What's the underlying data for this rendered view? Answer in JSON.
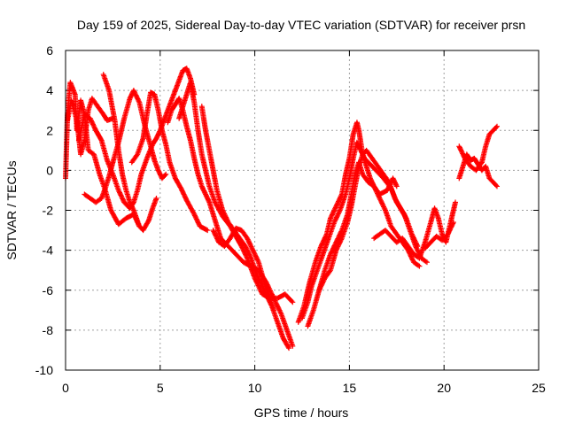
{
  "chart_data": {
    "type": "scatter",
    "title": "Day 159 of 2025, Sidereal Day-to-day VTEC variation (SDTVAR) for receiver prsn",
    "xlabel": "GPS time / hours",
    "ylabel": "SDTVAR / TECUs",
    "xlim": [
      0,
      25
    ],
    "ylim": [
      -10,
      6
    ],
    "xticks": [
      0,
      5,
      10,
      15,
      20,
      25
    ],
    "yticks": [
      -10,
      -8,
      -6,
      -4,
      -2,
      0,
      2,
      4,
      6
    ],
    "grid": true,
    "marker": "+",
    "color": "#ff0000",
    "series": [
      {
        "values": [
          [
            0.0,
            -0.4
          ],
          [
            0.1,
            2.8
          ],
          [
            0.25,
            4.4
          ],
          [
            0.5,
            3.8
          ],
          [
            0.6,
            2.0
          ],
          [
            0.8,
            3.5
          ],
          [
            1.0,
            2.8
          ],
          [
            1.2,
            1.0
          ],
          [
            1.5,
            0.8
          ],
          [
            1.8,
            -0.2
          ],
          [
            2.1,
            -1.0
          ],
          [
            2.4,
            -2.0
          ],
          [
            2.8,
            -2.7
          ],
          [
            3.2,
            -2.4
          ],
          [
            3.6,
            -2.2
          ],
          [
            3.9,
            -2.8
          ],
          [
            4.1,
            -3.0
          ],
          [
            4.4,
            -2.5
          ],
          [
            4.6,
            -1.9
          ],
          [
            4.8,
            -1.4
          ]
        ]
      },
      {
        "values": [
          [
            0.1,
            2.5
          ],
          [
            0.3,
            3.5
          ],
          [
            0.6,
            2.5
          ],
          [
            0.8,
            0.8
          ],
          [
            1.0,
            1.5
          ],
          [
            1.2,
            3.0
          ],
          [
            1.4,
            3.6
          ],
          [
            1.7,
            3.2
          ],
          [
            2.0,
            2.8
          ],
          [
            2.2,
            2.5
          ],
          [
            2.5,
            2.6
          ]
        ]
      },
      {
        "values": [
          [
            0.7,
            1.5
          ],
          [
            1.0,
            2.8
          ],
          [
            1.3,
            2.6
          ],
          [
            1.6,
            2.0
          ],
          [
            1.9,
            1.5
          ],
          [
            2.2,
            0.5
          ],
          [
            2.5,
            -0.2
          ],
          [
            2.8,
            -1.0
          ],
          [
            3.1,
            -1.6
          ],
          [
            3.4,
            -1.9
          ],
          [
            3.6,
            -1.6
          ],
          [
            3.8,
            -1.0
          ],
          [
            4.0,
            -0.2
          ],
          [
            4.3,
            0.6
          ],
          [
            4.6,
            1.3
          ],
          [
            4.8,
            1.6
          ],
          [
            5.0,
            2.0
          ],
          [
            5.2,
            2.5
          ],
          [
            5.4,
            3.0
          ],
          [
            5.6,
            3.5
          ],
          [
            5.8,
            4.0
          ],
          [
            6.0,
            4.5
          ],
          [
            6.2,
            5.0
          ],
          [
            6.4,
            5.1
          ],
          [
            6.6,
            4.6
          ],
          [
            6.8,
            3.8
          ]
        ]
      },
      {
        "values": [
          [
            1.0,
            -1.2
          ],
          [
            1.3,
            -1.4
          ],
          [
            1.6,
            -1.6
          ],
          [
            1.9,
            -1.4
          ],
          [
            2.1,
            -0.9
          ],
          [
            2.3,
            -0.3
          ],
          [
            2.5,
            0.4
          ],
          [
            2.8,
            1.4
          ],
          [
            3.1,
            2.6
          ],
          [
            3.4,
            3.6
          ],
          [
            3.6,
            4.0
          ],
          [
            3.9,
            3.4
          ],
          [
            4.2,
            2.2
          ],
          [
            4.5,
            1.2
          ],
          [
            4.7,
            0.5
          ],
          [
            4.9,
            0.0
          ],
          [
            5.1,
            -0.4
          ],
          [
            5.3,
            -0.2
          ]
        ]
      },
      {
        "values": [
          [
            2.0,
            4.8
          ],
          [
            2.3,
            4.0
          ],
          [
            2.6,
            2.5
          ],
          [
            2.8,
            1.0
          ],
          [
            3.0,
            -0.2
          ],
          [
            3.2,
            -1.0
          ],
          [
            3.4,
            -1.6
          ],
          [
            3.6,
            -2.0
          ],
          [
            3.9,
            -2.8
          ]
        ]
      },
      {
        "values": [
          [
            3.5,
            0.4
          ],
          [
            3.8,
            0.8
          ],
          [
            4.1,
            1.6
          ],
          [
            4.3,
            2.8
          ],
          [
            4.5,
            3.9
          ],
          [
            4.7,
            3.8
          ],
          [
            4.9,
            3.0
          ],
          [
            5.1,
            2.0
          ],
          [
            5.3,
            1.3
          ],
          [
            5.5,
            0.4
          ],
          [
            5.8,
            -0.4
          ],
          [
            6.1,
            -0.9
          ],
          [
            6.4,
            -1.5
          ],
          [
            6.8,
            -2.2
          ],
          [
            7.1,
            -2.8
          ],
          [
            7.5,
            -3.0
          ]
        ]
      },
      {
        "values": [
          [
            5.4,
            2.4
          ],
          [
            5.6,
            3.0
          ],
          [
            5.8,
            3.3
          ],
          [
            6.0,
            3.6
          ],
          [
            6.2,
            3.0
          ],
          [
            6.4,
            2.2
          ],
          [
            6.6,
            1.5
          ],
          [
            6.8,
            0.6
          ],
          [
            7.0,
            -0.2
          ],
          [
            7.2,
            -0.8
          ],
          [
            7.4,
            -1.2
          ],
          [
            7.6,
            -1.6
          ],
          [
            7.9,
            -2.5
          ],
          [
            8.2,
            -3.4
          ],
          [
            8.6,
            -3.8
          ],
          [
            9.0,
            -4.2
          ],
          [
            9.4,
            -4.6
          ],
          [
            9.8,
            -4.8
          ],
          [
            10.2,
            -5.0
          ],
          [
            10.6,
            -5.6
          ],
          [
            11.0,
            -6.4
          ],
          [
            11.4,
            -7.2
          ],
          [
            11.7,
            -8.0
          ],
          [
            12.0,
            -8.8
          ]
        ]
      },
      {
        "values": [
          [
            6.0,
            2.6
          ],
          [
            6.3,
            3.5
          ],
          [
            6.6,
            4.4
          ],
          [
            6.8,
            3.4
          ],
          [
            7.0,
            2.0
          ],
          [
            7.2,
            0.8
          ],
          [
            7.4,
            0.0
          ],
          [
            7.6,
            -0.8
          ],
          [
            7.9,
            -1.6
          ],
          [
            8.3,
            -2.3
          ],
          [
            8.7,
            -2.8
          ],
          [
            9.0,
            -3.3
          ],
          [
            9.3,
            -3.8
          ],
          [
            9.6,
            -4.4
          ],
          [
            10.0,
            -5.4
          ],
          [
            10.4,
            -6.2
          ],
          [
            10.8,
            -6.4
          ],
          [
            11.2,
            -6.4
          ],
          [
            11.6,
            -6.2
          ],
          [
            12.0,
            -6.6
          ]
        ]
      },
      {
        "values": [
          [
            7.2,
            3.2
          ],
          [
            7.4,
            2.0
          ],
          [
            7.6,
            1.0
          ],
          [
            7.8,
            0.0
          ],
          [
            8.0,
            -1.0
          ],
          [
            8.3,
            -2.0
          ],
          [
            8.6,
            -2.6
          ],
          [
            8.9,
            -3.0
          ],
          [
            9.2,
            -3.4
          ],
          [
            9.5,
            -3.8
          ],
          [
            9.8,
            -4.4
          ],
          [
            10.1,
            -5.2
          ],
          [
            10.5,
            -6.0
          ],
          [
            10.9,
            -6.8
          ],
          [
            11.2,
            -7.6
          ],
          [
            11.5,
            -8.4
          ],
          [
            11.8,
            -8.9
          ]
        ]
      },
      {
        "values": [
          [
            7.8,
            -3.0
          ],
          [
            8.1,
            -3.6
          ],
          [
            8.4,
            -3.8
          ],
          [
            8.7,
            -3.4
          ],
          [
            9.0,
            -2.9
          ],
          [
            9.3,
            -3.0
          ],
          [
            9.6,
            -3.4
          ],
          [
            9.9,
            -4.0
          ],
          [
            10.2,
            -4.6
          ],
          [
            10.5,
            -5.6
          ],
          [
            10.8,
            -6.4
          ],
          [
            11.0,
            -7.0
          ]
        ]
      },
      {
        "values": [
          [
            12.3,
            -7.6
          ],
          [
            12.6,
            -6.8
          ],
          [
            12.9,
            -5.6
          ],
          [
            13.2,
            -4.6
          ],
          [
            13.5,
            -3.8
          ],
          [
            13.8,
            -3.2
          ],
          [
            14.0,
            -2.4
          ],
          [
            14.3,
            -1.8
          ],
          [
            14.6,
            -1.2
          ],
          [
            14.8,
            -0.2
          ],
          [
            15.0,
            0.6
          ],
          [
            15.2,
            1.8
          ],
          [
            15.4,
            2.4
          ],
          [
            15.5,
            2.0
          ],
          [
            15.7,
            0.8
          ],
          [
            15.9,
            0.2
          ],
          [
            16.1,
            -0.4
          ],
          [
            16.3,
            -0.8
          ],
          [
            16.6,
            -1.2
          ],
          [
            17.0,
            -1.0
          ],
          [
            17.3,
            -0.4
          ],
          [
            17.5,
            -0.8
          ]
        ]
      },
      {
        "values": [
          [
            12.5,
            -7.4
          ],
          [
            12.8,
            -6.6
          ],
          [
            13.0,
            -5.8
          ],
          [
            13.3,
            -5.0
          ],
          [
            13.6,
            -4.2
          ],
          [
            13.9,
            -3.4
          ],
          [
            14.2,
            -2.6
          ],
          [
            14.5,
            -2.0
          ],
          [
            14.8,
            -1.2
          ],
          [
            15.0,
            -0.4
          ],
          [
            15.2,
            0.6
          ],
          [
            15.4,
            1.4
          ],
          [
            15.6,
            1.0
          ],
          [
            15.8,
            0.6
          ],
          [
            16.1,
            0.3
          ],
          [
            16.4,
            0.0
          ],
          [
            16.8,
            -0.4
          ],
          [
            17.2,
            -0.9
          ],
          [
            17.5,
            -1.6
          ],
          [
            17.9,
            -2.2
          ],
          [
            18.2,
            -3.0
          ],
          [
            18.5,
            -3.8
          ],
          [
            18.8,
            -4.4
          ],
          [
            19.1,
            -4.6
          ]
        ]
      },
      {
        "values": [
          [
            12.8,
            -7.8
          ],
          [
            13.1,
            -7.0
          ],
          [
            13.4,
            -6.0
          ],
          [
            13.7,
            -5.0
          ],
          [
            14.0,
            -4.2
          ],
          [
            14.3,
            -3.6
          ],
          [
            14.6,
            -3.0
          ],
          [
            14.9,
            -2.2
          ],
          [
            15.1,
            -1.2
          ],
          [
            15.3,
            -0.2
          ],
          [
            15.5,
            0.4
          ],
          [
            15.7,
            -0.2
          ],
          [
            16.0,
            -0.6
          ],
          [
            16.3,
            -0.8
          ],
          [
            16.6,
            -1.4
          ],
          [
            16.9,
            -2.0
          ],
          [
            17.2,
            -2.8
          ],
          [
            17.5,
            -3.2
          ],
          [
            17.8,
            -3.6
          ],
          [
            18.1,
            -4.0
          ],
          [
            18.4,
            -4.6
          ],
          [
            18.7,
            -4.8
          ]
        ]
      },
      {
        "values": [
          [
            13.4,
            -6.0
          ],
          [
            13.7,
            -5.4
          ],
          [
            14.0,
            -5.0
          ],
          [
            14.3,
            -4.0
          ],
          [
            14.6,
            -3.4
          ],
          [
            14.9,
            -2.6
          ],
          [
            15.1,
            -1.8
          ],
          [
            15.3,
            -0.8
          ],
          [
            15.5,
            0.2
          ],
          [
            15.7,
            0.8
          ],
          [
            15.9,
            1.0
          ],
          [
            16.2,
            0.6
          ],
          [
            16.5,
            0.2
          ],
          [
            16.8,
            -0.2
          ],
          [
            17.1,
            -0.6
          ],
          [
            17.4,
            -1.4
          ],
          [
            17.7,
            -1.9
          ],
          [
            18.0,
            -2.4
          ],
          [
            18.3,
            -3.2
          ],
          [
            18.6,
            -3.8
          ]
        ]
      },
      {
        "values": [
          [
            16.3,
            -3.4
          ],
          [
            16.6,
            -3.2
          ],
          [
            16.9,
            -3.0
          ],
          [
            17.2,
            -3.3
          ],
          [
            17.5,
            -3.6
          ],
          [
            17.8,
            -3.4
          ],
          [
            18.1,
            -3.8
          ],
          [
            18.4,
            -4.2
          ],
          [
            18.7,
            -4.4
          ],
          [
            19.0,
            -3.6
          ],
          [
            19.3,
            -2.6
          ],
          [
            19.5,
            -1.9
          ],
          [
            19.7,
            -2.4
          ],
          [
            19.9,
            -3.2
          ],
          [
            20.1,
            -3.6
          ],
          [
            20.4,
            -2.4
          ],
          [
            20.6,
            -1.6
          ]
        ]
      },
      {
        "values": [
          [
            19.0,
            -3.9
          ],
          [
            19.3,
            -3.6
          ],
          [
            19.6,
            -3.3
          ],
          [
            19.9,
            -3.5
          ],
          [
            20.2,
            -3.2
          ],
          [
            20.5,
            -2.6
          ]
        ]
      },
      {
        "values": [
          [
            20.8,
            -0.4
          ],
          [
            21.0,
            0.2
          ],
          [
            21.2,
            0.8
          ],
          [
            21.4,
            0.5
          ],
          [
            21.6,
            0.6
          ],
          [
            21.8,
            0.3
          ],
          [
            22.0,
            0.0
          ],
          [
            22.2,
            0.2
          ],
          [
            22.4,
            -0.4
          ],
          [
            22.6,
            -0.6
          ],
          [
            22.8,
            -0.8
          ]
        ]
      },
      {
        "values": [
          [
            20.8,
            1.2
          ],
          [
            21.1,
            0.6
          ],
          [
            21.4,
            0.2
          ],
          [
            21.7,
            0.0
          ],
          [
            22.0,
            0.4
          ],
          [
            22.2,
            1.2
          ],
          [
            22.4,
            1.8
          ],
          [
            22.6,
            2.0
          ],
          [
            22.8,
            2.2
          ]
        ]
      }
    ]
  }
}
